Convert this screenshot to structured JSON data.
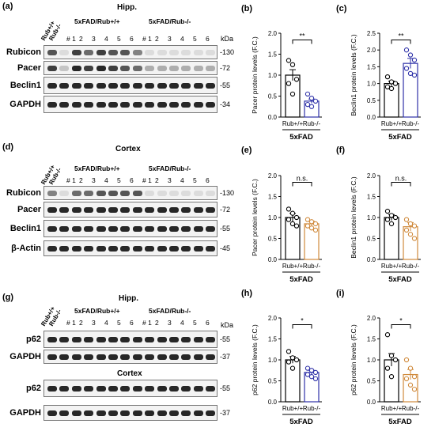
{
  "panels": {
    "a": {
      "label": "(a)",
      "title": "Hipp.",
      "group_wt": "5xFAD/Rub+/+",
      "group_ko": "5xFAD/Rub-/-",
      "ctrl": [
        "Rub+/+",
        "Rub-/-"
      ],
      "lanes": [
        "# 1",
        "2",
        "3",
        "4",
        "5",
        "6",
        "# 1",
        "2",
        "3",
        "4",
        "5",
        "6"
      ],
      "rows": [
        "Rubicon",
        "Pacer",
        "Beclin1",
        "GAPDH"
      ],
      "kda": [
        "130",
        "72",
        "55",
        "34"
      ],
      "kda_header": "kDa"
    },
    "d": {
      "label": "(d)",
      "title": "Cortex",
      "group_wt": "5xFAD/Rub+/+",
      "group_ko": "5xFAD/Rub-/-",
      "ctrl": [
        "Rub+/+",
        "Rub-/-"
      ],
      "lanes": [
        "# 1",
        "2",
        "3",
        "4",
        "5",
        "6",
        "# 1",
        "2",
        "3",
        "4",
        "5",
        "6"
      ],
      "rows": [
        "Rubicon",
        "Pacer",
        "Beclin1",
        "β-Actin"
      ],
      "kda": [
        "130",
        "72",
        "55",
        "45"
      ],
      "kda_header": "kDa"
    },
    "g": {
      "label": "(g)",
      "title": "Hipp.",
      "title2": "Cortex",
      "group_wt": "5xFAD/Rub+/+",
      "group_ko": "5xFAD/Rub-/-",
      "ctrl": [
        "Rub+/+",
        "Rub-/-"
      ],
      "lanes": [
        "# 1",
        "2",
        "3",
        "4",
        "5",
        "6",
        "# 1",
        "2",
        "3",
        "4",
        "5",
        "6"
      ],
      "rows": [
        "p62",
        "GAPDH",
        "p62",
        "GAPDH"
      ],
      "kda": [
        "55",
        "37",
        "55",
        "37"
      ],
      "kda_header": "kDa"
    }
  },
  "chart_data": [
    {
      "panel": "(b)",
      "type": "bar",
      "ylabel": "Pacer protein levels (F.C.)",
      "xgroup": "5xFAD",
      "categories": [
        "Rub+/+",
        "Rub-/-"
      ],
      "values": [
        1.0,
        0.38
      ],
      "sem": [
        0.13,
        0.05
      ],
      "ylim": [
        0,
        2.0
      ],
      "yticks": [
        "0.0",
        "0.5",
        "1.0",
        "1.5",
        "2.0"
      ],
      "significance": "**",
      "color": "#2E31A8",
      "points": [
        [
          1.35,
          1.25,
          0.9,
          0.8,
          0.55
        ],
        [
          0.55,
          0.45,
          0.38,
          0.3,
          0.25
        ]
      ]
    },
    {
      "panel": "(c)",
      "type": "bar",
      "ylabel": "Beclin1 protein levels (F.C.)",
      "xgroup": "5xFAD",
      "categories": [
        "Rub+/+",
        "Rub-/-"
      ],
      "values": [
        1.0,
        1.6
      ],
      "sem": [
        0.07,
        0.15
      ],
      "ylim": [
        0,
        2.5
      ],
      "yticks": [
        "0.0",
        "0.5",
        "1.0",
        "1.5",
        "2.0",
        "2.5"
      ],
      "significance": "**",
      "color": "#2E31A8",
      "points": [
        [
          1.2,
          1.05,
          1.0,
          0.9,
          0.85
        ],
        [
          2.0,
          1.85,
          1.7,
          1.45,
          1.3,
          1.25
        ]
      ]
    },
    {
      "panel": "(e)",
      "type": "bar",
      "ylabel": "Pacer protein levels (F.C.)",
      "xgroup": "5xFAD",
      "categories": [
        "Rub+/+",
        "Rub-/-"
      ],
      "values": [
        1.0,
        0.85
      ],
      "sem": [
        0.1,
        0.06
      ],
      "ylim": [
        0,
        2.0
      ],
      "yticks": [
        "0.0",
        "0.5",
        "1.0",
        "1.5",
        "2.0"
      ],
      "significance": "n.s.",
      "color": "#D08A3C",
      "points": [
        [
          1.2,
          1.1,
          1.0,
          0.95,
          0.85,
          0.8
        ],
        [
          0.95,
          0.9,
          0.85,
          0.8,
          0.75,
          0.7
        ]
      ]
    },
    {
      "panel": "(f)",
      "type": "bar",
      "ylabel": "Beclin1 protein levels (F.C.)",
      "xgroup": "5xFAD",
      "categories": [
        "Rub+/+",
        "Rub-/-"
      ],
      "values": [
        1.0,
        0.78
      ],
      "sem": [
        0.07,
        0.1
      ],
      "ylim": [
        0,
        2.0
      ],
      "yticks": [
        "0.0",
        "0.5",
        "1.0",
        "1.5",
        "2.0"
      ],
      "significance": "n.s.",
      "color": "#D08A3C",
      "points": [
        [
          1.15,
          1.05,
          1.0,
          0.95,
          0.85
        ],
        [
          0.95,
          0.85,
          0.8,
          0.7,
          0.6,
          0.5
        ]
      ]
    },
    {
      "panel": "(h)",
      "type": "bar",
      "ylabel": "p62 protein levels (F.C.)",
      "xgroup": "5xFAD",
      "categories": [
        "Rub+/+",
        "Rub-/-"
      ],
      "values": [
        1.0,
        0.7
      ],
      "sem": [
        0.08,
        0.05
      ],
      "ylim": [
        0,
        2.0
      ],
      "yticks": [
        "0.0",
        "0.5",
        "1.0",
        "1.5",
        "2.0"
      ],
      "significance": "*",
      "color": "#2E31A8",
      "points": [
        [
          1.2,
          1.05,
          1.0,
          0.95,
          0.8
        ],
        [
          0.8,
          0.75,
          0.7,
          0.65,
          0.6,
          0.55
        ]
      ]
    },
    {
      "panel": "(i)",
      "type": "bar",
      "ylabel": "p62 protein levels (F.C.)",
      "xgroup": "5xFAD",
      "categories": [
        "Rub+/+",
        "Rub-/-"
      ],
      "values": [
        1.0,
        0.65
      ],
      "sem": [
        0.15,
        0.12
      ],
      "ylim": [
        0,
        2.0
      ],
      "yticks": [
        "0.0",
        "0.5",
        "1.0",
        "1.5",
        "2.0"
      ],
      "significance": "*",
      "color": "#D08A3C",
      "points": [
        [
          1.6,
          1.1,
          1.0,
          0.8,
          0.6
        ],
        [
          1.0,
          0.8,
          0.6,
          0.55,
          0.4,
          0.3
        ]
      ]
    }
  ]
}
